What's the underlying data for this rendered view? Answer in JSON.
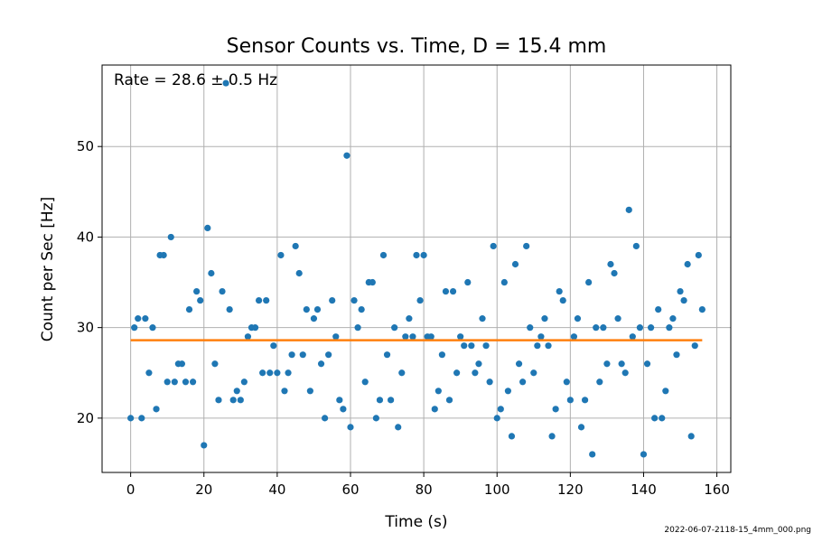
{
  "chart_data": {
    "type": "scatter",
    "title": "Sensor Counts vs. Time, D = 15.4 mm",
    "xlabel": "Time (s)",
    "ylabel": "Count per Sec [Hz]",
    "xlim": [
      -7.8,
      163.8
    ],
    "ylim": [
      14,
      59
    ],
    "xticks": [
      0,
      20,
      40,
      60,
      80,
      100,
      120,
      140,
      160
    ],
    "yticks": [
      20,
      30,
      40,
      50
    ],
    "grid": true,
    "annotation": "Rate = 28.6 ± 0.5 Hz",
    "footer": "2022-06-07-2118-15_4mm_000.png",
    "colors": {
      "points": "#1f77b4",
      "fit": "#ff7f0e"
    },
    "series": [
      {
        "type": "scatter",
        "x": [
          0,
          1,
          2,
          3,
          4,
          5,
          6,
          7,
          8,
          9,
          10,
          11,
          12,
          13,
          14,
          15,
          16,
          17,
          18,
          19,
          20,
          21,
          22,
          23,
          24,
          25,
          26,
          27,
          28,
          29,
          30,
          31,
          32,
          33,
          34,
          35,
          36,
          37,
          38,
          39,
          40,
          41,
          42,
          43,
          44,
          45,
          46,
          47,
          48,
          49,
          50,
          51,
          52,
          53,
          54,
          55,
          56,
          57,
          58,
          59,
          60,
          61,
          62,
          63,
          64,
          65,
          66,
          67,
          68,
          69,
          70,
          71,
          72,
          73,
          74,
          75,
          76,
          77,
          78,
          79,
          80,
          81,
          82,
          83,
          84,
          85,
          86,
          87,
          88,
          89,
          90,
          91,
          92,
          93,
          94,
          95,
          96,
          97,
          98,
          99,
          100,
          101,
          102,
          103,
          104,
          105,
          106,
          107,
          108,
          109,
          110,
          111,
          112,
          113,
          114,
          115,
          116,
          117,
          118,
          119,
          120,
          121,
          122,
          123,
          124,
          125,
          126,
          127,
          128,
          129,
          130,
          131,
          132,
          133,
          134,
          135,
          136,
          137,
          138,
          139,
          140,
          141,
          142,
          143,
          144,
          145,
          146,
          147,
          148,
          149,
          150,
          151,
          152,
          153,
          154,
          155,
          156
        ],
        "y": [
          20,
          30,
          31,
          20,
          31,
          25,
          30,
          21,
          38,
          38,
          24,
          40,
          24,
          26,
          26,
          24,
          32,
          24,
          34,
          33,
          17,
          41,
          36,
          26,
          22,
          34,
          57,
          32,
          22,
          23,
          22,
          24,
          29,
          30,
          30,
          33,
          25,
          33,
          25,
          28,
          25,
          38,
          23,
          25,
          27,
          39,
          36,
          27,
          32,
          23,
          31,
          32,
          26,
          20,
          27,
          33,
          29,
          22,
          21,
          49,
          19,
          33,
          30,
          32,
          24,
          35,
          35,
          20,
          22,
          38,
          27,
          22,
          30,
          19,
          25,
          29,
          31,
          29,
          38,
          33,
          38,
          29,
          29,
          21,
          23,
          27,
          34,
          22,
          34,
          25,
          29,
          28,
          35,
          28,
          25,
          26,
          31,
          28,
          24,
          39,
          20,
          21,
          35,
          23,
          18,
          37,
          26,
          24,
          39,
          30,
          25,
          28,
          29,
          31,
          28,
          18,
          21,
          34,
          33,
          24,
          22,
          29,
          31,
          19,
          22,
          35,
          16,
          30,
          24,
          30,
          26,
          37,
          36,
          31,
          26,
          25,
          43,
          29,
          39,
          30,
          16,
          26,
          30,
          20,
          32,
          20,
          23,
          30,
          31,
          27,
          34,
          33,
          37,
          18,
          28,
          38,
          32
        ]
      },
      {
        "type": "line",
        "x": [
          0,
          156
        ],
        "y": [
          28.6,
          28.6
        ]
      }
    ]
  }
}
